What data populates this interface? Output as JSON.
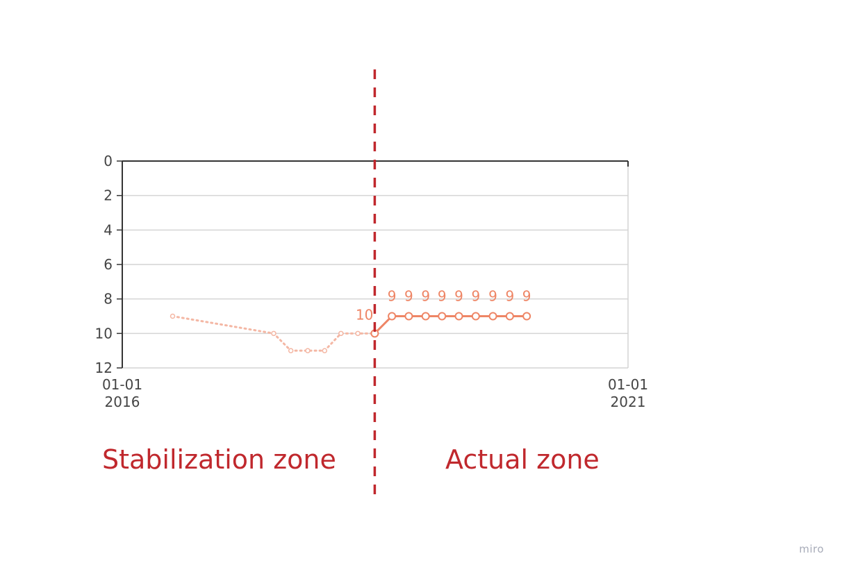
{
  "chart_data": {
    "type": "line",
    "ylim": [
      0,
      12
    ],
    "y_inverted": true,
    "y_ticks": [
      0,
      2,
      4,
      6,
      8,
      10,
      12
    ],
    "x_range": [
      "2016-01-01",
      "2021-01-01"
    ],
    "x_ticks": [
      {
        "date": "2016-01-01",
        "line1": "01-01",
        "line2": "2016"
      },
      {
        "date": "2021-01-01",
        "line1": "01-01",
        "line2": "2021"
      }
    ],
    "grid": true,
    "series": [
      {
        "style": "dotted",
        "color": "#f4b7a4",
        "points": [
          {
            "x": "2016-07-01",
            "y": 9
          },
          {
            "x": "2017-07-01",
            "y": 10
          },
          {
            "x": "2017-09-01",
            "y": 11
          },
          {
            "x": "2017-11-01",
            "y": 11
          },
          {
            "x": "2018-01-01",
            "y": 11
          },
          {
            "x": "2018-03-01",
            "y": 10
          },
          {
            "x": "2018-05-01",
            "y": 10
          },
          {
            "x": "2018-07-01",
            "y": 10
          }
        ]
      },
      {
        "style": "solid",
        "color": "#ee8565",
        "points": [
          {
            "x": "2018-07-01",
            "y": 10,
            "label": "10"
          },
          {
            "x": "2018-09-01",
            "y": 9,
            "label": "9"
          },
          {
            "x": "2018-11-01",
            "y": 9,
            "label": "9"
          },
          {
            "x": "2019-01-01",
            "y": 9,
            "label": "9"
          },
          {
            "x": "2019-03-01",
            "y": 9,
            "label": "9"
          },
          {
            "x": "2019-05-01",
            "y": 9,
            "label": "9"
          },
          {
            "x": "2019-07-01",
            "y": 9,
            "label": "9"
          },
          {
            "x": "2019-09-01",
            "y": 9,
            "label": "9"
          },
          {
            "x": "2019-11-01",
            "y": 9,
            "label": "9"
          },
          {
            "x": "2020-01-01",
            "y": 9,
            "label": "9"
          }
        ]
      }
    ],
    "divider": {
      "x": "2018-07-01",
      "color": "#c0282d",
      "style": "dashed"
    }
  },
  "annotations": {
    "left_zone": "Stabilization zone",
    "right_zone": "Actual zone"
  },
  "watermark": "miro"
}
